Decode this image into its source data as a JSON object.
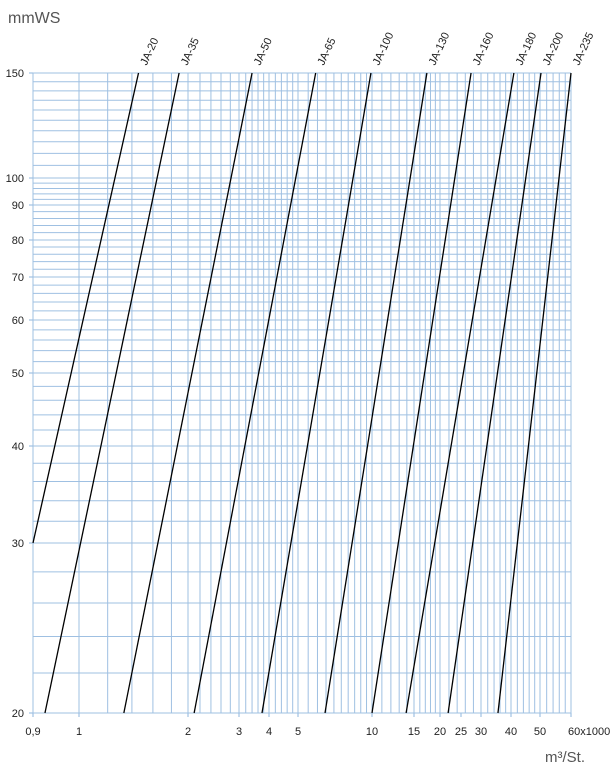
{
  "chart_data": {
    "type": "line",
    "title": "",
    "ylabel": "mmWS",
    "xlabel": "m³/St.",
    "x_scale": "log",
    "y_scale": "log",
    "xlim": [
      0.9,
      60
    ],
    "ylim": [
      20,
      150
    ],
    "grid": true,
    "x_ticks": [
      "0,9",
      "1",
      "2",
      "3",
      "4",
      "5",
      "10",
      "15",
      "20",
      "25",
      "30",
      "40",
      "50",
      "60x1000"
    ],
    "x_tick_values": [
      0.9,
      1,
      2,
      3,
      4,
      5,
      10,
      15,
      20,
      25,
      30,
      40,
      50,
      60
    ],
    "y_ticks": [
      "150",
      "100",
      "90",
      "80",
      "70",
      "60",
      "50",
      "40",
      "30",
      "20"
    ],
    "y_tick_values": [
      150,
      100,
      90,
      80,
      70,
      60,
      50,
      40,
      30,
      20
    ],
    "grid_color": "#9fc0e2",
    "line_color": "#000000",
    "series": [
      {
        "name": "JA-20",
        "points": [
          [
            0.9,
            30
          ],
          [
            1.46,
            150
          ]
        ]
      },
      {
        "name": "JA-35",
        "points": [
          [
            0.925,
            20
          ],
          [
            1.89,
            150
          ]
        ]
      },
      {
        "name": "JA-50",
        "points": [
          [
            1.33,
            20
          ],
          [
            3.4,
            150
          ]
        ]
      },
      {
        "name": "JA-65",
        "points": [
          [
            2.1,
            20
          ],
          [
            5.9,
            150
          ]
        ]
      },
      {
        "name": "JA-100",
        "points": [
          [
            3.74,
            20
          ],
          [
            9.9,
            150
          ]
        ]
      },
      {
        "name": "JA-130",
        "points": [
          [
            6.44,
            20
          ],
          [
            17.3,
            150
          ]
        ]
      },
      {
        "name": "JA-160",
        "points": [
          [
            10,
            20
          ],
          [
            27.4,
            150
          ]
        ]
      },
      {
        "name": "JA-180",
        "points": [
          [
            13.9,
            20
          ],
          [
            40.9,
            150
          ]
        ]
      },
      {
        "name": "JA-200",
        "points": [
          [
            21.8,
            20
          ],
          [
            50.3,
            150
          ]
        ]
      },
      {
        "name": "JA-235",
        "points": [
          [
            35.3,
            20
          ],
          [
            60,
            150
          ]
        ]
      }
    ]
  }
}
